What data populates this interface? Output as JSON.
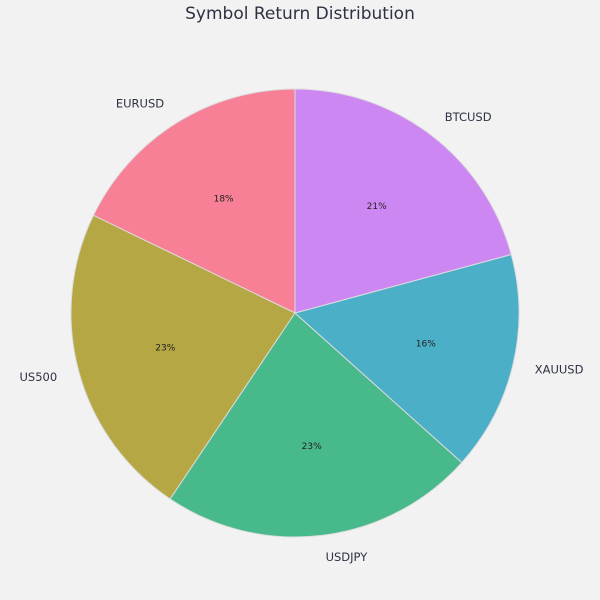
{
  "chart_data": {
    "type": "pie",
    "title": "Symbol Return Distribution",
    "categories": [
      "EURUSD",
      "US500",
      "USDJPY",
      "XAUUSD",
      "BTCUSD"
    ],
    "values": [
      18,
      23,
      23,
      16,
      21
    ],
    "percent_labels": [
      "18%",
      "23%",
      "23%",
      "16%",
      "21%"
    ],
    "colors": [
      "#f77f96",
      "#b5a744",
      "#47b98a",
      "#4bafc8",
      "#cd87f2"
    ],
    "start_angle_deg": 90,
    "direction": "counterclockwise",
    "legend": "none"
  }
}
